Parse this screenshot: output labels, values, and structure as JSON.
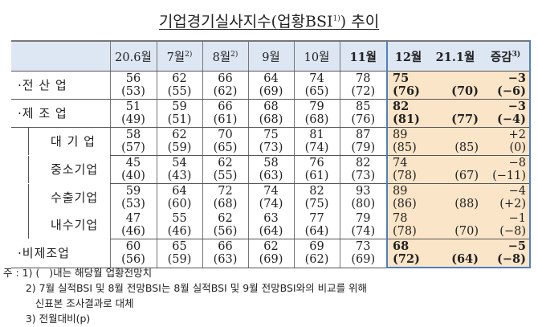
{
  "title": {
    "text": "기업경기실사지수(업황BSI",
    "sup": "1)",
    "suffix": ") 추이"
  },
  "columns": [
    {
      "label": "20.6월",
      "sup": ""
    },
    {
      "label": "7월",
      "sup": "2)"
    },
    {
      "label": "8월",
      "sup": "2)"
    },
    {
      "label": "9월",
      "sup": ""
    },
    {
      "label": "10월",
      "sup": ""
    },
    {
      "label": "11월",
      "sup": ""
    },
    {
      "label": "12월",
      "sup": ""
    },
    {
      "label": "21.1월",
      "sup": ""
    },
    {
      "label": "증감",
      "sup": "3)"
    }
  ],
  "highlight_color": "#fbe5c8",
  "header_color": "#dde7f3",
  "rows": [
    {
      "label": "·전 산 업",
      "sub": false,
      "bold": true,
      "actual": [
        "56",
        "62",
        "66",
        "64",
        "74",
        "78",
        "75",
        "",
        "−3"
      ],
      "outlook": [
        "(53)",
        "(55)",
        "(62)",
        "(69)",
        "(65)",
        "(72)",
        "(76)",
        "(70)",
        "(−6)"
      ]
    },
    {
      "label": "·제 조 업",
      "sub": false,
      "bold": true,
      "actual": [
        "51",
        "59",
        "66",
        "68",
        "79",
        "85",
        "82",
        "",
        "−3"
      ],
      "outlook": [
        "(49)",
        "(51)",
        "(61)",
        "(68)",
        "(68)",
        "(76)",
        "(81)",
        "(77)",
        "(−4)"
      ]
    },
    {
      "label": "대 기 업",
      "sub": true,
      "bold": false,
      "actual": [
        "58",
        "62",
        "70",
        "75",
        "81",
        "87",
        "89",
        "",
        "+2"
      ],
      "outlook": [
        "(57)",
        "(59)",
        "(65)",
        "(73)",
        "(74)",
        "(79)",
        "(85)",
        "(85)",
        "(0)"
      ]
    },
    {
      "label": "중소기업",
      "sub": true,
      "bold": false,
      "actual": [
        "45",
        "54",
        "62",
        "58",
        "76",
        "82",
        "74",
        "",
        "−8"
      ],
      "outlook": [
        "(40)",
        "(43)",
        "(55)",
        "(63)",
        "(61)",
        "(73)",
        "(78)",
        "(67)",
        "(−11)"
      ]
    },
    {
      "label": "수출기업",
      "sub": true,
      "bold": false,
      "actual": [
        "59",
        "64",
        "72",
        "74",
        "82",
        "93",
        "89",
        "",
        "−4"
      ],
      "outlook": [
        "(53)",
        "(60)",
        "(68)",
        "(74)",
        "(75)",
        "(80)",
        "(86)",
        "(88)",
        "(+2)"
      ]
    },
    {
      "label": "내수기업",
      "sub": true,
      "bold": false,
      "actual": [
        "47",
        "55",
        "62",
        "63",
        "77",
        "79",
        "78",
        "",
        "−1"
      ],
      "outlook": [
        "(46)",
        "(46)",
        "(56)",
        "(64)",
        "(64)",
        "(74)",
        "(78)",
        "(70)",
        "(−8)"
      ]
    },
    {
      "label": "·비제조업",
      "sub": false,
      "bold": true,
      "actual": [
        "60",
        "65",
        "66",
        "62",
        "69",
        "73",
        "68",
        "",
        "−5"
      ],
      "outlook": [
        "(56)",
        "(59)",
        "(63)",
        "(69)",
        "(62)",
        "(69)",
        "(72)",
        "(64)",
        "(−8)"
      ]
    }
  ],
  "notes": [
    "주 : 1) (   )내는 해당월 업황전망치",
    "       2) 7월 실적BSI 및 8월 전망BSI는 8월 실적BSI 및 9월 전망BSI와의 비교를 위해",
    "          신표본 조사결과로 대체",
    "       3) 전월대비(p)"
  ]
}
